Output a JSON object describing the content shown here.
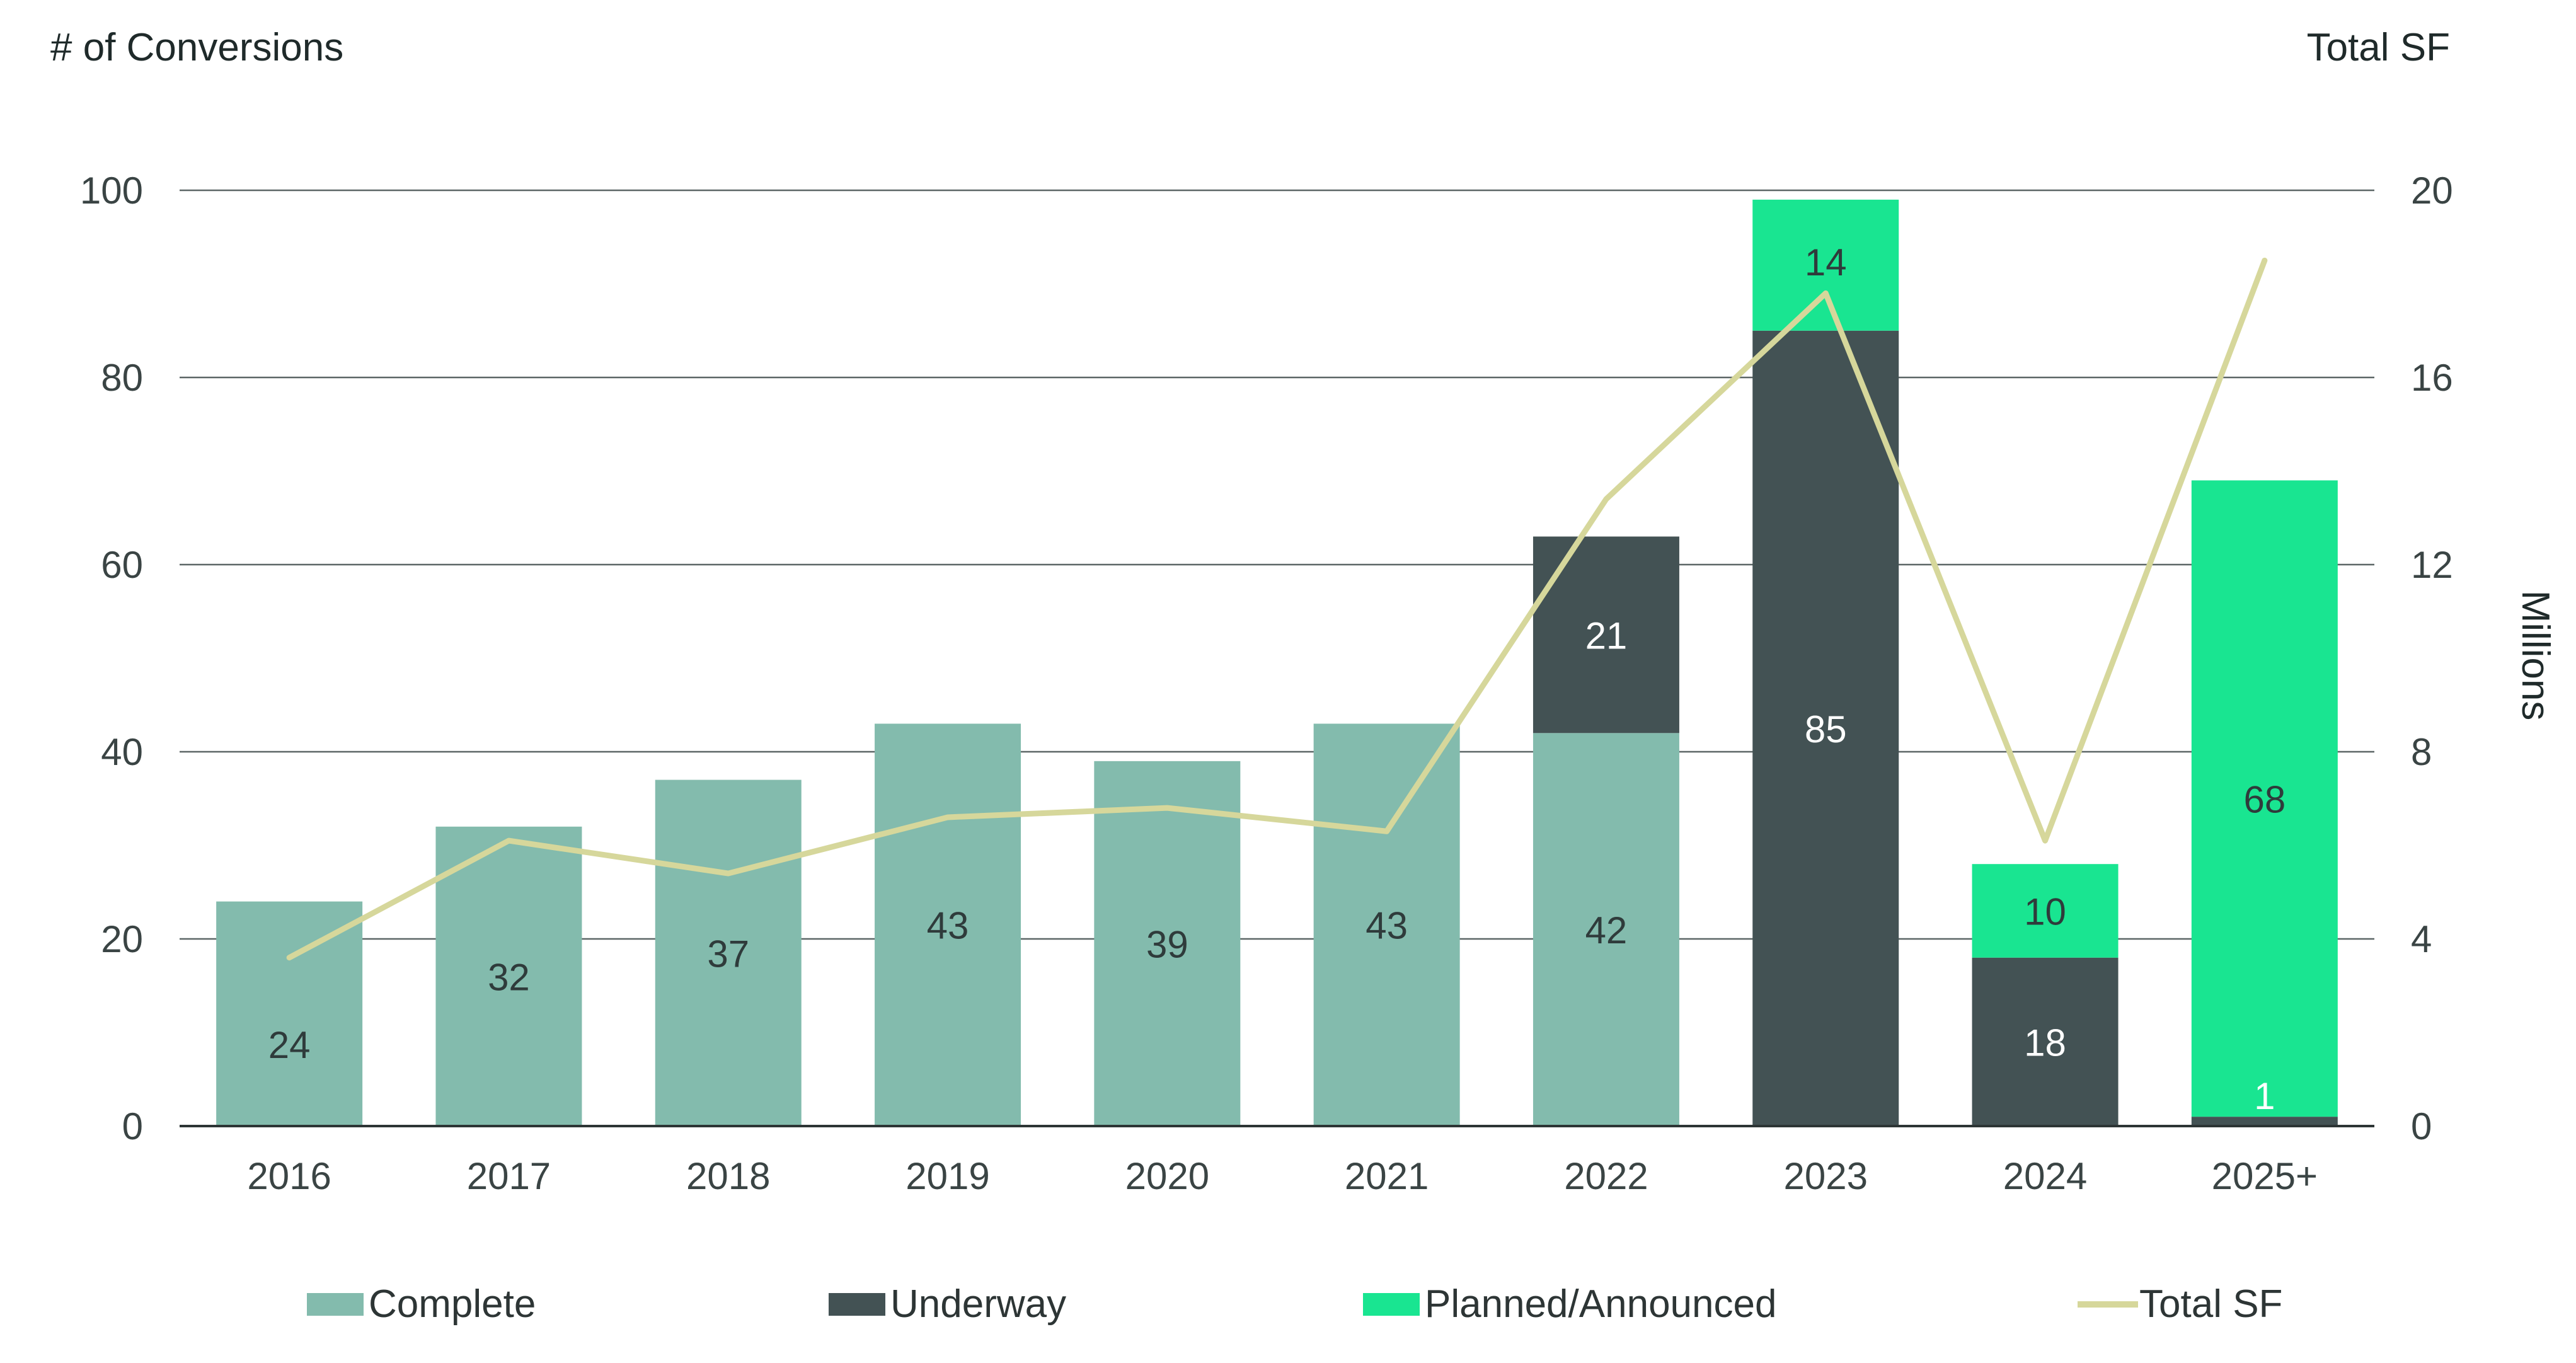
{
  "colors": {
    "complete": "#83BBAD",
    "underway": "#435254",
    "planned": "#19E591",
    "total_sf": "#D6D79B",
    "grid": "#5c6666"
  },
  "chart_data": {
    "type": "bar",
    "stacked": true,
    "categories": [
      "2016",
      "2017",
      "2018",
      "2019",
      "2020",
      "2021",
      "2022",
      "2023",
      "2024",
      "2025+"
    ],
    "series": [
      {
        "name": "Complete",
        "values": [
          24,
          32,
          37,
          43,
          39,
          43,
          42,
          0,
          0,
          0
        ],
        "labels": [
          "24",
          "32",
          "37",
          "43",
          "39",
          "43",
          "42",
          "",
          "",
          ""
        ]
      },
      {
        "name": "Underway",
        "values": [
          0,
          0,
          0,
          0,
          0,
          0,
          21,
          85,
          18,
          1
        ],
        "labels": [
          "",
          "",
          "",
          "",
          "",
          "",
          "21",
          "85",
          "18",
          "1"
        ]
      },
      {
        "name": "Planned/Announced",
        "values": [
          0,
          0,
          0,
          0,
          0,
          0,
          0,
          14,
          10,
          68
        ],
        "labels": [
          "",
          "",
          "",
          "",
          "",
          "",
          "",
          "14",
          "10",
          "68"
        ]
      }
    ],
    "line_series": {
      "name": "Total SF",
      "axis": "right",
      "values": [
        3.6,
        6.1,
        5.4,
        6.6,
        6.8,
        6.3,
        13.4,
        17.8,
        6.1,
        18.5
      ]
    },
    "ylabel": "# of Conversions",
    "ylabel_right": "Total SF",
    "ylabel_right_unit": "Millions",
    "ylim": [
      0,
      100
    ],
    "ylim_right": [
      0,
      20
    ],
    "yticks": [
      "0",
      "20",
      "40",
      "60",
      "80",
      "100"
    ],
    "yticks_right": [
      "0",
      "4",
      "8",
      "12",
      "16",
      "20"
    ],
    "grid": true,
    "legend_position": "bottom",
    "legend": [
      "Complete",
      "Underway",
      "Planned/Announced",
      "Total SF"
    ]
  }
}
